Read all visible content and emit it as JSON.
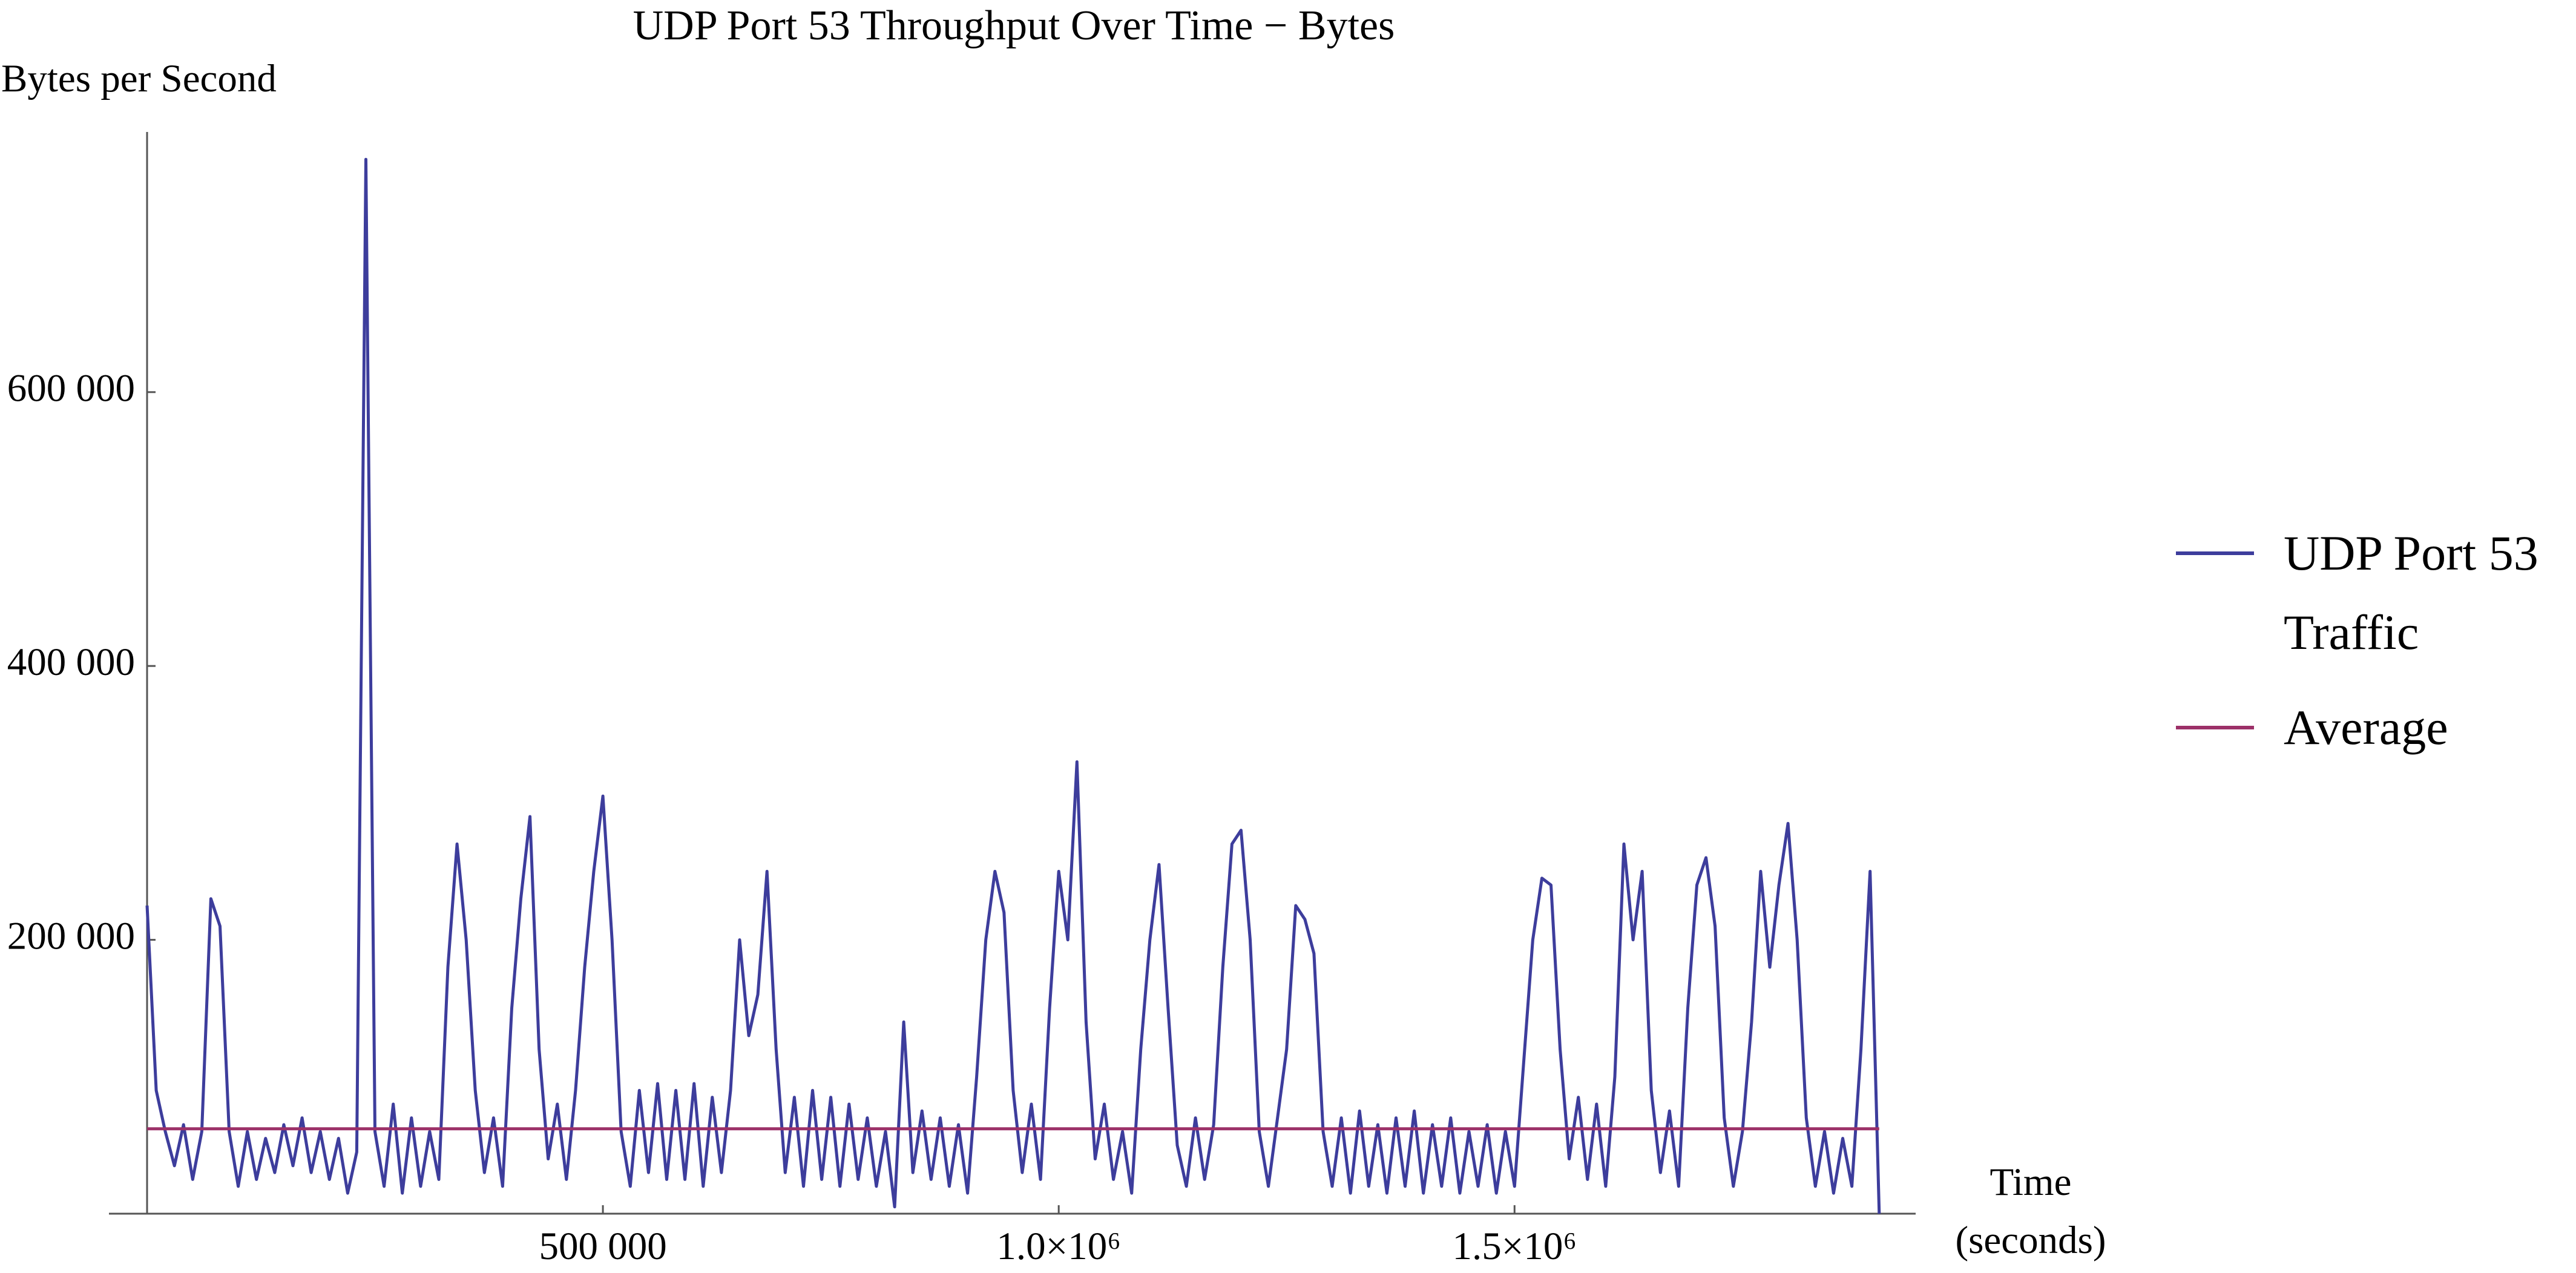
{
  "chart_data": {
    "type": "line",
    "title": "UDP Port 53 Throughput Over Time − Bytes",
    "ylabel": "Bytes per Second",
    "xlabel": "Time (seconds)",
    "legend": "right",
    "xlim": [
      0,
      1940000
    ],
    "ylim": [
      0,
      790000
    ],
    "xticks": [
      {
        "value": 500000,
        "label": "500 000"
      },
      {
        "value": 1000000,
        "label": "1.0×10⁶"
      },
      {
        "value": 1500000,
        "label": "1.5×10⁶"
      }
    ],
    "yticks": [
      {
        "value": 200000,
        "label": "200 000"
      },
      {
        "value": 400000,
        "label": "400 000"
      },
      {
        "value": 600000,
        "label": "600 000"
      }
    ],
    "series": [
      {
        "name": "UDP Port 53 Traffic",
        "color": "#3d3d9c",
        "x": [
          0,
          10000,
          20000,
          30000,
          40000,
          50000,
          60000,
          70000,
          80000,
          90000,
          100000,
          110000,
          120000,
          130000,
          140000,
          150000,
          160000,
          170000,
          180000,
          190000,
          200000,
          210000,
          220000,
          230000,
          240000,
          250000,
          260000,
          270000,
          280000,
          290000,
          300000,
          310000,
          320000,
          330000,
          340000,
          350000,
          360000,
          370000,
          380000,
          390000,
          400000,
          410000,
          420000,
          430000,
          440000,
          450000,
          460000,
          470000,
          480000,
          490000,
          500000,
          510000,
          520000,
          530000,
          540000,
          550000,
          560000,
          570000,
          580000,
          590000,
          600000,
          610000,
          620000,
          630000,
          640000,
          650000,
          660000,
          670000,
          680000,
          690000,
          700000,
          710000,
          720000,
          730000,
          740000,
          750000,
          760000,
          770000,
          780000,
          790000,
          800000,
          810000,
          820000,
          830000,
          840000,
          850000,
          860000,
          870000,
          880000,
          890000,
          900000,
          910000,
          920000,
          930000,
          940000,
          950000,
          960000,
          970000,
          980000,
          990000,
          1000000,
          1010000,
          1020000,
          1030000,
          1040000,
          1050000,
          1060000,
          1070000,
          1080000,
          1090000,
          1100000,
          1110000,
          1120000,
          1130000,
          1140000,
          1150000,
          1160000,
          1170000,
          1180000,
          1190000,
          1200000,
          1210000,
          1220000,
          1230000,
          1240000,
          1250000,
          1260000,
          1270000,
          1280000,
          1290000,
          1300000,
          1310000,
          1320000,
          1330000,
          1340000,
          1350000,
          1360000,
          1370000,
          1380000,
          1390000,
          1400000,
          1410000,
          1420000,
          1430000,
          1440000,
          1450000,
          1460000,
          1470000,
          1480000,
          1490000,
          1500000,
          1510000,
          1520000,
          1530000,
          1540000,
          1550000,
          1560000,
          1570000,
          1580000,
          1590000,
          1600000,
          1610000,
          1620000,
          1630000,
          1640000,
          1650000,
          1660000,
          1670000,
          1680000,
          1690000,
          1700000,
          1710000,
          1720000,
          1730000,
          1740000,
          1750000,
          1760000,
          1770000,
          1780000,
          1790000,
          1800000,
          1810000,
          1820000,
          1830000,
          1840000,
          1850000,
          1860000,
          1870000,
          1880000,
          1890000,
          1900000
        ],
        "values": [
          225000,
          90000,
          60000,
          35000,
          65000,
          25000,
          60000,
          230000,
          210000,
          60000,
          20000,
          60000,
          25000,
          55000,
          30000,
          65000,
          35000,
          70000,
          30000,
          60000,
          25000,
          55000,
          15000,
          45000,
          770000,
          60000,
          20000,
          80000,
          15000,
          70000,
          20000,
          60000,
          25000,
          180000,
          270000,
          200000,
          90000,
          30000,
          70000,
          20000,
          150000,
          230000,
          290000,
          120000,
          40000,
          80000,
          25000,
          90000,
          180000,
          250000,
          305000,
          200000,
          60000,
          20000,
          90000,
          30000,
          95000,
          25000,
          90000,
          25000,
          95000,
          20000,
          85000,
          30000,
          90000,
          200000,
          130000,
          160000,
          250000,
          120000,
          30000,
          85000,
          20000,
          90000,
          25000,
          85000,
          20000,
          80000,
          25000,
          70000,
          20000,
          60000,
          5000,
          140000,
          30000,
          75000,
          25000,
          70000,
          20000,
          65000,
          15000,
          100000,
          200000,
          250000,
          220000,
          90000,
          30000,
          80000,
          25000,
          150000,
          250000,
          200000,
          330000,
          140000,
          40000,
          80000,
          25000,
          60000,
          15000,
          120000,
          200000,
          255000,
          150000,
          50000,
          20000,
          70000,
          25000,
          65000,
          180000,
          270000,
          280000,
          200000,
          60000,
          20000,
          70000,
          120000,
          225000,
          215000,
          190000,
          60000,
          20000,
          70000,
          15000,
          75000,
          20000,
          65000,
          15000,
          70000,
          20000,
          75000,
          15000,
          65000,
          20000,
          70000,
          15000,
          60000,
          20000,
          65000,
          15000,
          60000,
          20000,
          110000,
          200000,
          245000,
          240000,
          120000,
          40000,
          85000,
          25000,
          80000,
          20000,
          100000,
          270000,
          200000,
          250000,
          90000,
          30000,
          75000,
          20000,
          150000,
          240000,
          260000,
          210000,
          70000,
          20000,
          60000,
          140000,
          250000,
          180000,
          240000,
          285000,
          200000,
          70000,
          20000,
          60000,
          15000,
          55000,
          20000,
          120000,
          250000,
          0
        ]
      },
      {
        "name": "Average",
        "color": "#9c3068",
        "x": [
          0,
          1900000
        ],
        "values": [
          62000,
          62000
        ]
      }
    ]
  }
}
